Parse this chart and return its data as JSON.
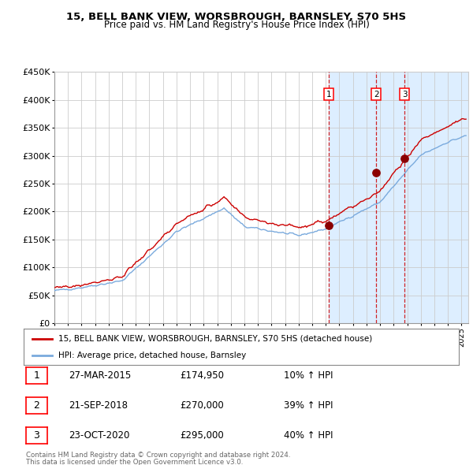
{
  "title": "15, BELL BANK VIEW, WORSBROUGH, BARNSLEY, S70 5HS",
  "subtitle": "Price paid vs. HM Land Registry's House Price Index (HPI)",
  "legend_property": "15, BELL BANK VIEW, WORSBROUGH, BARNSLEY, S70 5HS (detached house)",
  "legend_hpi": "HPI: Average price, detached house, Barnsley",
  "red_line_color": "#cc0000",
  "blue_line_color": "#7aaadd",
  "background_color": "#ffffff",
  "plot_bg_color": "#ffffff",
  "shaded_region_color": "#ddeeff",
  "grid_color": "#cccccc",
  "purchases": [
    {
      "date": 2015.23,
      "price": 174950,
      "label": "1"
    },
    {
      "date": 2018.72,
      "price": 270000,
      "label": "2"
    },
    {
      "date": 2020.81,
      "price": 295000,
      "label": "3"
    }
  ],
  "purchase_dates_str": [
    "27-MAR-2015",
    "21-SEP-2018",
    "23-OCT-2020"
  ],
  "purchase_prices_str": [
    "£174,950",
    "£270,000",
    "£295,000"
  ],
  "purchase_pct": [
    "10% ↑ HPI",
    "39% ↑ HPI",
    "40% ↑ HPI"
  ],
  "footer_line1": "Contains HM Land Registry data © Crown copyright and database right 2024.",
  "footer_line2": "This data is licensed under the Open Government Licence v3.0.",
  "xmin": 1995.0,
  "xmax": 2025.5,
  "ymin": 0,
  "ymax": 450000,
  "yticks": [
    0,
    50000,
    100000,
    150000,
    200000,
    250000,
    300000,
    350000,
    400000,
    450000
  ],
  "ytick_labels": [
    "£0",
    "£50K",
    "£100K",
    "£150K",
    "£200K",
    "£250K",
    "£300K",
    "£350K",
    "£400K",
    "£450K"
  ]
}
